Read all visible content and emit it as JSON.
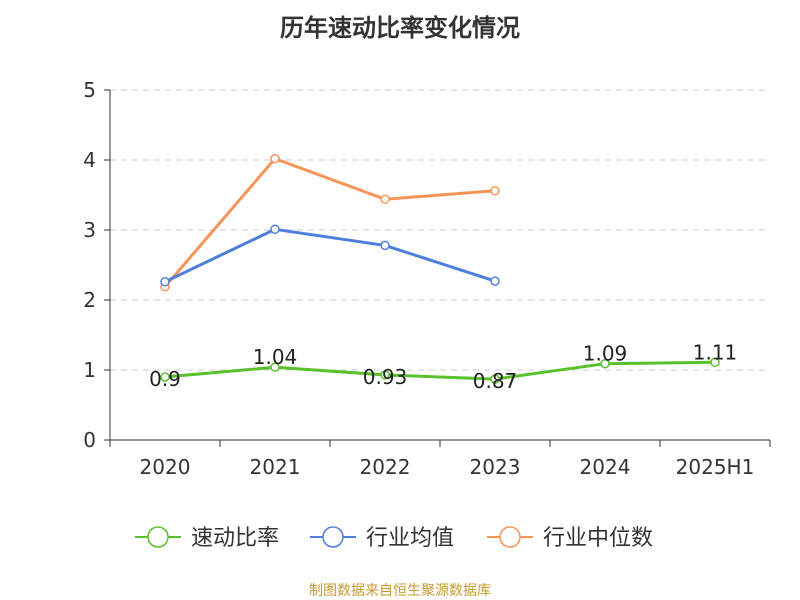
{
  "chart_data": {
    "type": "line",
    "title": "历年速动比率变化情况",
    "categories": [
      "2020",
      "2021",
      "2022",
      "2023",
      "2024",
      "2025H1"
    ],
    "ylim": [
      0,
      5
    ],
    "yticks": [
      0,
      1,
      2,
      3,
      4,
      5
    ],
    "grid": true,
    "legend_position": "bottom",
    "series": [
      {
        "name": "速动比率",
        "color": "#5ac12d",
        "values": [
          0.9,
          1.04,
          0.93,
          0.87,
          1.09,
          1.11
        ],
        "labels": [
          "0.9",
          "1.04",
          "0.93",
          "0.87",
          "1.09",
          "1.11"
        ]
      },
      {
        "name": "行业均值",
        "color": "#4f7fdc",
        "values": [
          2.26,
          3.01,
          2.78,
          2.27,
          null,
          null
        ]
      },
      {
        "name": "行业中位数",
        "color": "#f79458",
        "values": [
          2.19,
          4.02,
          3.44,
          3.56,
          null,
          null
        ]
      }
    ]
  },
  "source": "制图数据来自恒生聚源数据库"
}
